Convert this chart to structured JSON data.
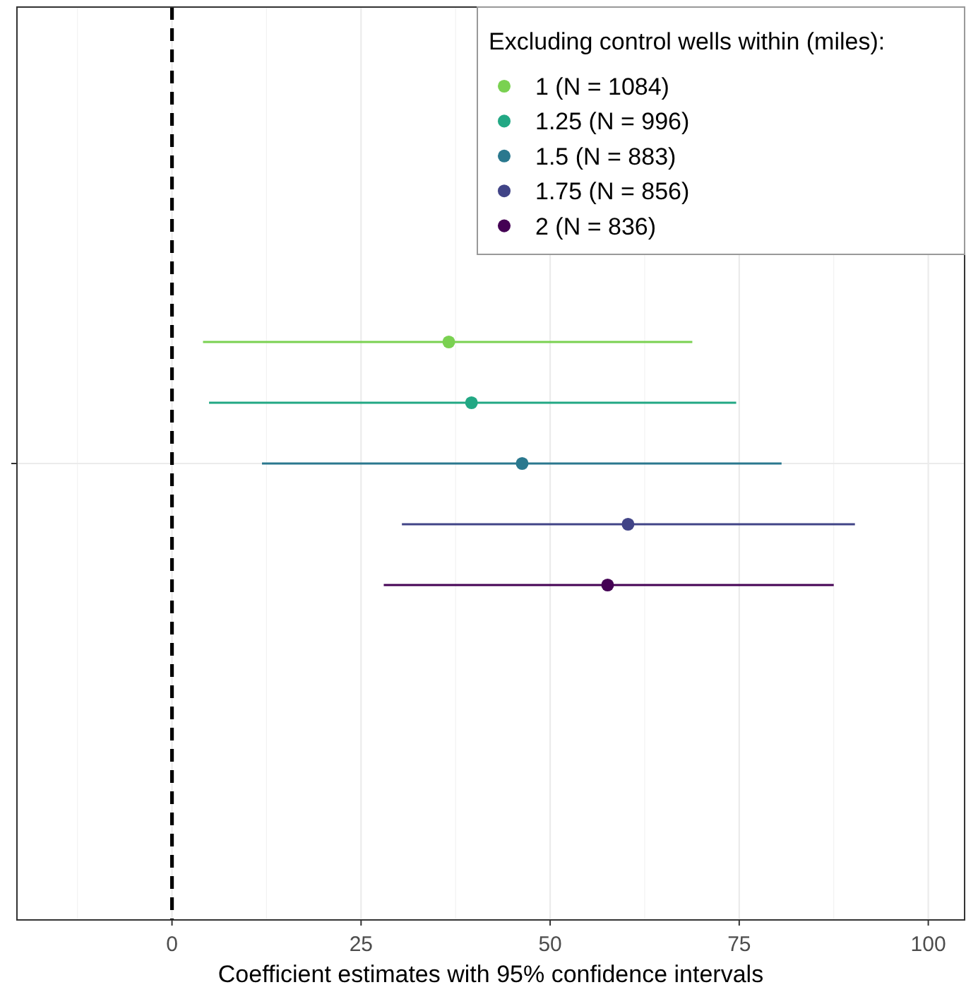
{
  "chart_data": {
    "type": "scatter",
    "orientation": "horizontal",
    "categories": [
      null
    ],
    "xlabel": "Coefficient estimates with 95% confidence intervals",
    "legend_title": "Excluding control wells within (miles):",
    "xlim": [
      -20.5,
      104.8
    ],
    "xticks": [
      0,
      25,
      50,
      75,
      100
    ],
    "grid": true,
    "legend": "top right",
    "marker": "circle",
    "ref_lines": [
      {
        "axis": "x",
        "value": 0,
        "color": "#000000",
        "line_style": "dashed"
      }
    ],
    "series": [
      {
        "name": "1 (N = 1084)",
        "color": "#7ad151",
        "values": [
          36.6
        ],
        "errors": [
          [
            4.1,
            68.8
          ]
        ]
      },
      {
        "name": "1.25 (N = 996)",
        "color": "#22a884",
        "values": [
          39.6
        ],
        "errors": [
          [
            4.9,
            74.6
          ]
        ]
      },
      {
        "name": "1.5 (N = 883)",
        "color": "#2a788e",
        "values": [
          46.3
        ],
        "errors": [
          [
            11.9,
            80.6
          ]
        ]
      },
      {
        "name": "1.75 (N = 856)",
        "color": "#414487",
        "values": [
          60.3
        ],
        "errors": [
          [
            30.4,
            90.3
          ]
        ]
      },
      {
        "name": "2 (N = 836)",
        "color": "#440154",
        "values": [
          57.6
        ],
        "errors": [
          [
            28.0,
            87.5
          ]
        ]
      }
    ]
  }
}
